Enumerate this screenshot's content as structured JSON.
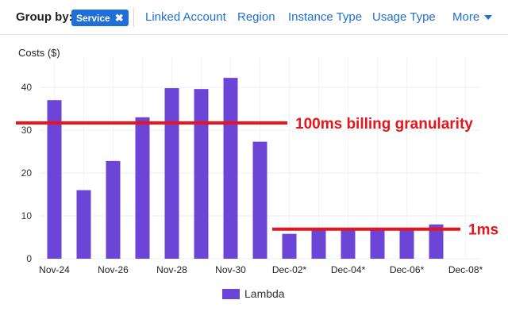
{
  "toolbar": {
    "group_by_label": "Group by:",
    "chip_label": "Service",
    "chip_close": "✖",
    "tabs": [
      "Linked Account",
      "Region",
      "Instance Type",
      "Usage Type",
      "More"
    ]
  },
  "colors": {
    "bar": "#6b45d6",
    "annotation": "#e8141b",
    "link": "#1f6fd6"
  },
  "chart_data": {
    "type": "bar",
    "ylabel": "Costs ($)",
    "ylim": [
      0,
      45
    ],
    "yticks": [
      0,
      10,
      20,
      30,
      40
    ],
    "grid": true,
    "categories": [
      "Nov-24",
      "Nov-25",
      "Nov-26",
      "Nov-27",
      "Nov-28",
      "Nov-29",
      "Nov-30",
      "Dec-01*",
      "Dec-02*",
      "Dec-03*",
      "Dec-04*",
      "Dec-05*",
      "Dec-06*",
      "Dec-07*",
      "Dec-08*"
    ],
    "tick_labels": [
      "Nov-24",
      "",
      "Nov-26",
      "",
      "Nov-28",
      "",
      "Nov-30",
      "",
      "Dec-02*",
      "",
      "Dec-04*",
      "",
      "Dec-06*",
      "",
      "Dec-08*"
    ],
    "series": [
      {
        "name": "Lambda",
        "values": [
          37,
          16,
          22.8,
          33,
          39.8,
          39.6,
          42.2,
          27.3,
          5.8,
          6.7,
          6.7,
          6.7,
          6.7,
          8,
          0
        ]
      }
    ],
    "legend": "bottom-center",
    "annotations": [
      {
        "text": "100ms billing granularity",
        "y": 31.7
      },
      {
        "text": "1ms",
        "y": 6.9
      }
    ]
  }
}
